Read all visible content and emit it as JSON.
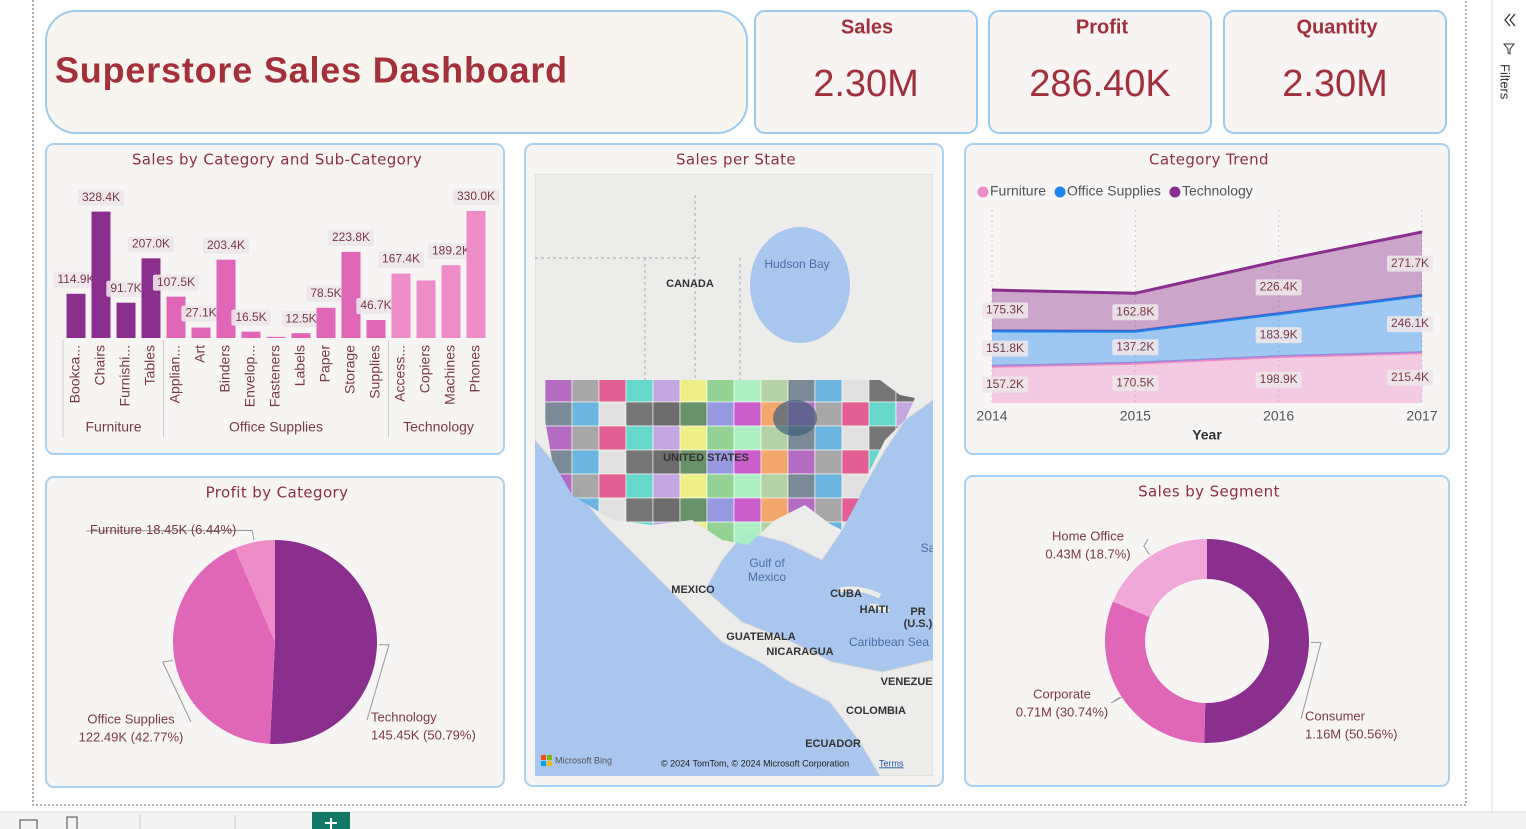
{
  "header": {
    "title": "Superstore Sales Dashboard"
  },
  "cards": [
    {
      "label": "Sales",
      "value": "2.30M"
    },
    {
      "label": "Profit",
      "value": "286.40K"
    },
    {
      "label": "Quantity",
      "value": "2.30M"
    }
  ],
  "chart_data": [
    {
      "type": "bar",
      "title": "Sales by Category and Sub-Category",
      "groups": [
        {
          "name": "Furniture",
          "color": "#8b2f8f",
          "categories": [
            "Bookca...",
            "Chairs",
            "Furnishi...",
            "Tables"
          ],
          "values": [
            114900,
            328400,
            91700,
            207000
          ],
          "value_labels": [
            "114.9K",
            "328.4K",
            "91.7K",
            "207.0K"
          ]
        },
        {
          "name": "Office Supplies",
          "color": "#e066b8",
          "categories": [
            "Applian...",
            "Art",
            "Binders",
            "Envelop...",
            "Fasteners",
            "Labels",
            "Paper",
            "Storage",
            "Supplies"
          ],
          "values": [
            107500,
            27100,
            203400,
            16500,
            3000,
            12500,
            78500,
            223800,
            46700
          ],
          "value_labels": [
            "107.5K",
            "27.1K",
            "203.4K",
            "16.5K",
            null,
            "12.5K",
            "78.5K",
            "223.8K",
            "46.7K"
          ]
        },
        {
          "name": "Technology",
          "color": "#ee8cc8",
          "categories": [
            "Access...",
            "Copiers",
            "Machines",
            "Phones"
          ],
          "values": [
            167400,
            149500,
            189200,
            330000
          ],
          "value_labels": [
            "167.4K",
            null,
            "189.2K",
            "330.0K"
          ]
        }
      ]
    },
    {
      "type": "area",
      "title": "Category Trend",
      "stacked": true,
      "xlabel": "Year",
      "x": [
        2014,
        2015,
        2016,
        2017
      ],
      "xlim": [
        2014,
        2017
      ],
      "xticks": [
        2014,
        2015,
        2016,
        2017
      ],
      "series": [
        {
          "name": "Furniture",
          "color": "#ee8cc8",
          "values": [
            157200,
            170500,
            198900,
            215400
          ],
          "value_labels": [
            "157.2K",
            "170.5K",
            "198.9K",
            "215.4K"
          ]
        },
        {
          "name": "Office Supplies",
          "color": "#1a86f0",
          "values": [
            151800,
            137200,
            183900,
            246100
          ],
          "value_labels": [
            "151.8K",
            "137.2K",
            "183.9K",
            "246.1K"
          ]
        },
        {
          "name": "Technology",
          "color": "#8b2f8f",
          "values": [
            175300,
            162800,
            226400,
            271700
          ],
          "value_labels": [
            "175.3K",
            "162.8K",
            "226.4K",
            "271.7K"
          ]
        }
      ]
    },
    {
      "type": "pie",
      "title": "Profit by Category",
      "categories": [
        "Technology",
        "Office Supplies",
        "Furniture"
      ],
      "values": [
        145450,
        122490,
        18450
      ],
      "value_labels": [
        "145.45K (50.79%)",
        "122.49K (42.77%)",
        "18.45K (6.44%)"
      ],
      "colors": [
        "#8b2f8f",
        "#e066b8",
        "#ee8cc8"
      ]
    },
    {
      "type": "donut",
      "title": "Sales by Segment",
      "categories": [
        "Consumer",
        "Corporate",
        "Home Office"
      ],
      "values": [
        1160000,
        710000,
        430000
      ],
      "value_labels": [
        "1.16M (50.56%)",
        "0.71M (30.74%)",
        "0.43M (18.7%)"
      ],
      "colors": [
        "#8b2f8f",
        "#e066b8",
        "#f0a8d8"
      ]
    }
  ],
  "map": {
    "title": "Sales per State",
    "labels": [
      "CANADA",
      "Hudson Bay",
      "UNITED STATES",
      "Gulf of",
      "Mexico",
      "MEXICO",
      "CUBA",
      "HAITI",
      "PR",
      "(U.S.)",
      "GUATEMALA",
      "NICARAGUA",
      "Caribbean Sea",
      "VENEZUEL",
      "COLOMBIA",
      "ECUADOR",
      "Sa"
    ],
    "logo": "Microsoft Bing",
    "attribution": "© 2024 TomTom, © 2024 Microsoft Corporation",
    "terms": "Terms"
  },
  "sidebar": {
    "label": "Filters"
  }
}
